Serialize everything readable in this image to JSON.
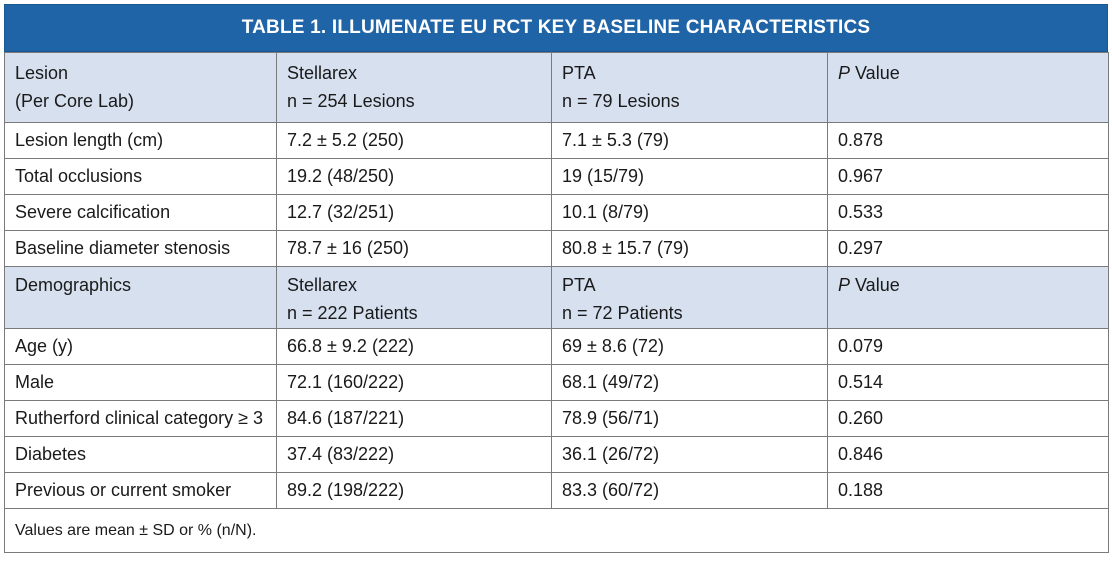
{
  "title": "TABLE 1.  ILLUMENATE EU RCT KEY BASELINE CHARACTERISTICS",
  "section1": {
    "headers": [
      [
        "Lesion",
        "(Per Core Lab)"
      ],
      [
        "Stellarex",
        "n = 254 Lesions"
      ],
      [
        "PTA",
        "n = 79 Lesions"
      ],
      [
        "P",
        " Value"
      ]
    ],
    "rows": [
      [
        "Lesion length (cm)",
        "7.2 ± 5.2 (250)",
        "7.1 ± 5.3 (79)",
        "0.878"
      ],
      [
        "Total occlusions",
        "19.2 (48/250)",
        "19 (15/79)",
        "0.967"
      ],
      [
        "Severe calcification",
        "12.7 (32/251)",
        "10.1 (8/79)",
        "0.533"
      ],
      [
        "Baseline diameter stenosis",
        "78.7 ± 16 (250)",
        "80.8 ± 15.7 (79)",
        "0.297"
      ]
    ]
  },
  "section2": {
    "headers": [
      [
        "Demographics",
        ""
      ],
      [
        "Stellarex",
        "n = 222 Patients"
      ],
      [
        "PTA",
        "n = 72 Patients"
      ],
      [
        "P",
        " Value"
      ]
    ],
    "rows": [
      [
        "Age (y)",
        "66.8 ± 9.2 (222)",
        "69 ± 8.6 (72)",
        "0.079"
      ],
      [
        "Male",
        "72.1 (160/222)",
        "68.1 (49/72)",
        "0.514"
      ],
      [
        "Rutherford clinical category ≥ 3",
        "84.6 (187/221)",
        "78.9 (56/71)",
        "0.260"
      ],
      [
        "Diabetes",
        "37.4 (83/222)",
        "36.1 (26/72)",
        "0.846"
      ],
      [
        "Previous or current smoker",
        "89.2 (198/222)",
        "83.3 (60/72)",
        "0.188"
      ]
    ]
  },
  "footnote": "Values are mean ± SD or % (n/N).",
  "colors": {
    "title_bg": "#1f64a6",
    "header_bg": "#d6e0ef",
    "border": "#7a7a7a"
  }
}
